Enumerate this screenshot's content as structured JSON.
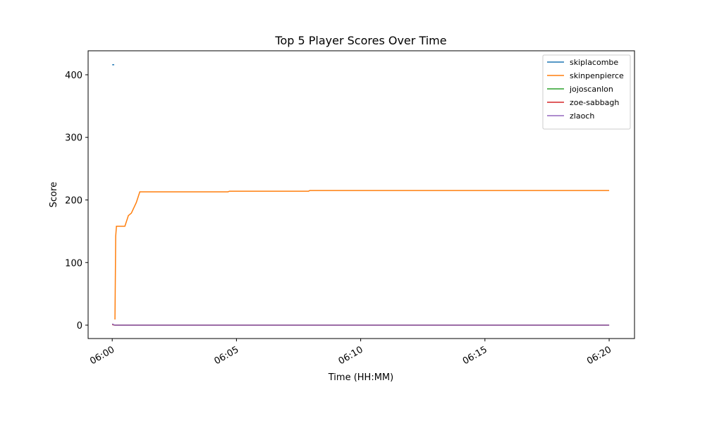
{
  "chart_data": {
    "type": "line",
    "title": "Top 5 Player Scores Over Time",
    "xlabel": "Time (HH:MM)",
    "ylabel": "Score",
    "xlim": [
      -0.97,
      21.02
    ],
    "ylim": [
      -21.4,
      438.3
    ],
    "xticks": [
      {
        "value": 0,
        "label": "06:00"
      },
      {
        "value": 5,
        "label": "06:05"
      },
      {
        "value": 10,
        "label": "06:10"
      },
      {
        "value": 15,
        "label": "06:15"
      },
      {
        "value": 20,
        "label": "06:20"
      }
    ],
    "yticks": [
      0,
      100,
      200,
      300,
      400
    ],
    "legend": "upper right",
    "series": [
      {
        "name": "skiplacombe",
        "color": "#1f77b4",
        "x": [
          0,
          0.08
        ],
        "values": [
          416,
          416
        ]
      },
      {
        "name": "skinpenpierce",
        "color": "#ff7f0e",
        "x": [
          0.11,
          0.14,
          0.17,
          0.51,
          0.65,
          0.77,
          0.97,
          1.11,
          4.66,
          4.72,
          7.9,
          7.95,
          20
        ],
        "values": [
          9,
          142,
          158,
          158,
          175,
          179,
          196,
          213,
          213,
          214,
          214,
          215,
          215
        ]
      },
      {
        "name": "jojoscanlon",
        "color": "#2ca02c",
        "x": [
          0,
          0.1,
          20
        ],
        "values": [
          1,
          0,
          0
        ]
      },
      {
        "name": "zoe-sabbagh",
        "color": "#d62728",
        "x": [
          0,
          0.1,
          20
        ],
        "values": [
          1,
          0,
          0
        ]
      },
      {
        "name": "zlaoch",
        "color": "#9467bd",
        "x": [
          0,
          0.1,
          20
        ],
        "values": [
          2,
          0,
          0
        ]
      }
    ]
  }
}
